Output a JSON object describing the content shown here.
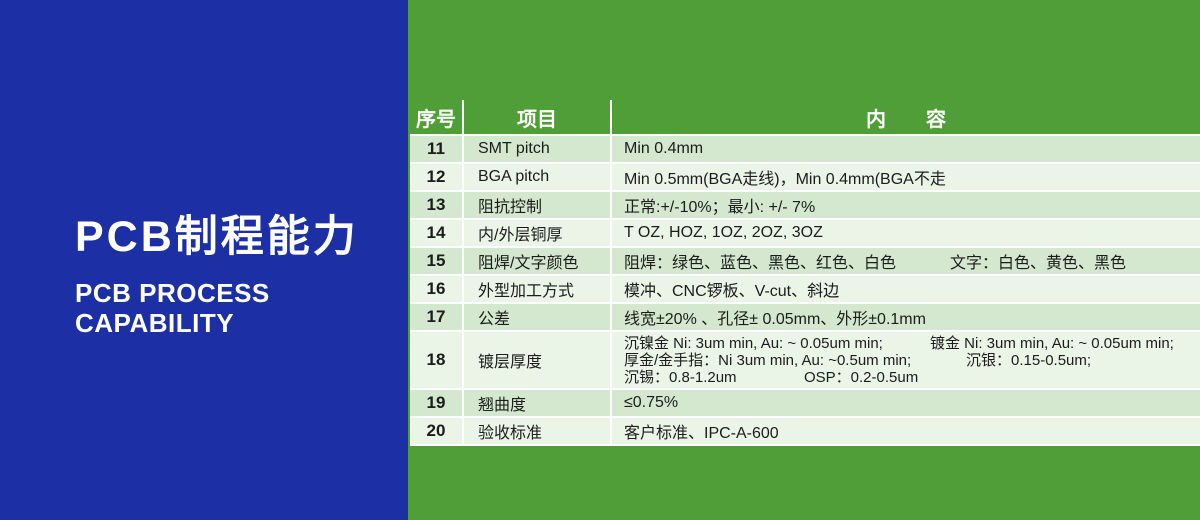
{
  "left_panel": {
    "title": "PCB制程能力",
    "subtitle_line1": "PCB PROCESS",
    "subtitle_line2": "CAPABILITY"
  },
  "table": {
    "header": {
      "no": "序号",
      "item": "项目",
      "content": "内　　容"
    },
    "rows": [
      {
        "no": "11",
        "item": "SMT pitch",
        "content": "Min 0.4mm"
      },
      {
        "no": "12",
        "item": "BGA pitch",
        "content": "Min 0.5mm(BGA走线)，Min 0.4mm(BGA不走"
      },
      {
        "no": "13",
        "item": "阻抗控制",
        "content": "正常:+/-10%；最小: +/- 7%"
      },
      {
        "no": "14",
        "item": "内/外层铜厚",
        "content": "T OZ, HOZ, 1OZ, 2OZ, 3OZ"
      },
      {
        "no": "15",
        "item": "阻焊/文字颜色",
        "content_left": "阻焊：绿色、蓝色、黑色、红色、白色",
        "content_right": "文字：白色、黄色、黑色"
      },
      {
        "no": "16",
        "item": "外型加工方式",
        "content": "模冲、CNC锣板、V-cut、斜边"
      },
      {
        "no": "17",
        "item": "公差",
        "content": "线宽±20% 、孔径± 0.05mm、外形±0.1mm"
      },
      {
        "no": "18",
        "item": "镀层厚度",
        "line1_left": "沉镍金  Ni: 3um min, Au: ~ 0.05um min;",
        "line1_right": "镀金   Ni: 3um min, Au: ~ 0.05um min;",
        "line2_left": "厚金/金手指：Ni 3um min, Au: ~0.5um min;",
        "line2_right": "沉银：0.15-0.5um;",
        "line3_left": "沉锡：0.8-1.2um",
        "line3_right": "OSP：0.2-0.5um"
      },
      {
        "no": "19",
        "item": "翘曲度",
        "content": "≤0.75%"
      },
      {
        "no": "20",
        "item": "验收标准",
        "content": "客户标准、IPC-A-600"
      }
    ]
  },
  "colors": {
    "panel_blue": "#1c2fa4",
    "panel_green": "#509e37",
    "row_dark": "#d3e8ce",
    "row_light": "#eaf4e7",
    "divider": "#ffffff",
    "header_text": "#ffffff",
    "body_text": "#1c1c1c"
  }
}
